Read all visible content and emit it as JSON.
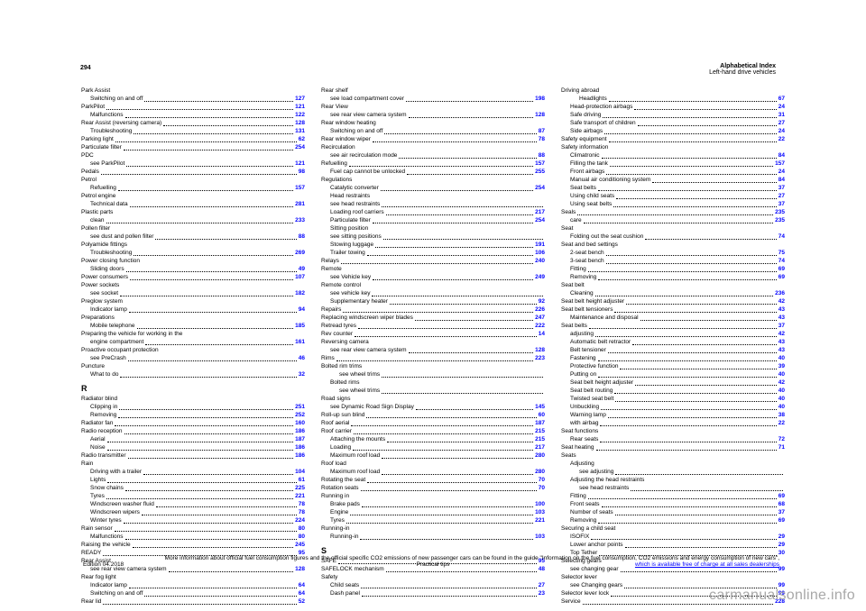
{
  "page_number": "294",
  "header_line1": "Alphabetical Index",
  "header_line2": "Left-hand drive vehicles",
  "col1": [
    {
      "txt": "Park Assist",
      "pg": ""
    },
    {
      "txt": "Switching on and off",
      "pg": "127",
      "indent": 1
    },
    {
      "txt": "ParkPilot",
      "pg": "121",
      "indent": 0
    },
    {
      "txt": "Malfunctions",
      "pg": "122",
      "indent": 1
    },
    {
      "txt": "Rear Assist (reversing camera)",
      "pg": "128",
      "indent": 0
    },
    {
      "txt": "Troubleshooting",
      "pg": "131",
      "indent": 1
    },
    {
      "txt": "Parking light",
      "pg": "62",
      "indent": 0
    },
    {
      "txt": "Particulate filter",
      "pg": "254",
      "indent": 0
    },
    {
      "txt": "PDC",
      "pg": "",
      "indent": 0
    },
    {
      "txt": "see ParkPilot",
      "pg": "121",
      "indent": 1
    },
    {
      "txt": "Pedals",
      "pg": "98",
      "indent": 0
    },
    {
      "txt": "Petrol",
      "pg": "",
      "indent": 0
    },
    {
      "txt": "Refuelling",
      "pg": "157",
      "indent": 1
    },
    {
      "txt": "Petrol engine",
      "pg": "",
      "indent": 0
    },
    {
      "txt": "Technical data",
      "pg": "281",
      "indent": 1
    },
    {
      "txt": "Plastic parts",
      "pg": "",
      "indent": 0
    },
    {
      "txt": "clean",
      "pg": "233",
      "indent": 1
    },
    {
      "txt": "Pollen filter",
      "pg": "",
      "indent": 0
    },
    {
      "txt": "see dust and pollen filter",
      "pg": "88",
      "indent": 1
    },
    {
      "txt": "Polyamide fittings",
      "pg": "",
      "indent": 0
    },
    {
      "txt": "Troubleshooting",
      "pg": "269",
      "indent": 1
    },
    {
      "txt": "Power closing function",
      "pg": "",
      "indent": 0
    },
    {
      "txt": "Sliding doors",
      "pg": "49",
      "indent": 1
    },
    {
      "txt": "Power consumers",
      "pg": "107",
      "indent": 0
    },
    {
      "txt": "Power sockets",
      "pg": "",
      "indent": 0
    },
    {
      "txt": "see socket",
      "pg": "182",
      "indent": 1
    },
    {
      "txt": "Preglow system",
      "pg": "",
      "indent": 0
    },
    {
      "txt": "Indicator lamp",
      "pg": "94",
      "indent": 1
    },
    {
      "txt": "Preparations",
      "pg": "",
      "indent": 0
    },
    {
      "txt": "Mobile telephone",
      "pg": "185",
      "indent": 1
    },
    {
      "txt": "Preparing the vehicle for working in the",
      "pg": "",
      "indent": 0
    },
    {
      "txt": "engine compartment",
      "pg": "161",
      "indent": 1
    },
    {
      "txt": "Proactive occupant protection",
      "pg": "",
      "indent": 0
    },
    {
      "txt": "see PreCrash",
      "pg": "46",
      "indent": 1
    },
    {
      "txt": "Puncture",
      "pg": "",
      "indent": 0
    },
    {
      "txt": "What to do",
      "pg": "32",
      "indent": 1
    }
  ],
  "col1_R": [
    {
      "letter": "R"
    },
    {
      "txt": "Radiator blind",
      "pg": "",
      "indent": 0
    },
    {
      "txt": "Clipping in",
      "pg": "251",
      "indent": 1
    },
    {
      "txt": "Removing",
      "pg": "252",
      "indent": 1
    },
    {
      "txt": "Radiator fan",
      "pg": "160",
      "indent": 0
    },
    {
      "txt": "Radio reception",
      "pg": "186",
      "indent": 0
    },
    {
      "txt": "Aerial",
      "pg": "187",
      "indent": 1
    },
    {
      "txt": "Noise",
      "pg": "186",
      "indent": 1
    },
    {
      "txt": "Radio transmitter",
      "pg": "186",
      "indent": 0
    },
    {
      "txt": "Rain",
      "pg": "",
      "indent": 0
    },
    {
      "txt": "Driving with a trailer",
      "pg": "104",
      "indent": 1
    },
    {
      "txt": "Lights",
      "pg": "61",
      "indent": 1
    },
    {
      "txt": "Snow chains",
      "pg": "225",
      "indent": 1
    },
    {
      "txt": "Tyres",
      "pg": "221",
      "indent": 1
    },
    {
      "txt": "Windscreen washer fluid",
      "pg": "78",
      "indent": 1
    },
    {
      "txt": "Windscreen wipers",
      "pg": "78",
      "indent": 1
    },
    {
      "txt": "Winter tyres",
      "pg": "224",
      "indent": 1
    },
    {
      "txt": "Rain sensor",
      "pg": "80",
      "indent": 0
    },
    {
      "txt": "Malfunctions",
      "pg": "80",
      "indent": 1
    },
    {
      "txt": "Raising the vehicle",
      "pg": "245",
      "indent": 0
    },
    {
      "txt": "READY",
      "pg": "95",
      "indent": 0
    },
    {
      "txt": "Rear Assist",
      "pg": "",
      "indent": 0
    },
    {
      "txt": "see rear view camera system",
      "pg": "128",
      "indent": 1
    },
    {
      "txt": "Rear fog light",
      "pg": "",
      "indent": 0
    },
    {
      "txt": "Indicator lamp",
      "pg": "64",
      "indent": 1
    },
    {
      "txt": "Switching on and off",
      "pg": "64",
      "indent": 1
    },
    {
      "txt": "Rear lid",
      "pg": "52",
      "indent": 0
    }
  ],
  "col2": [
    {
      "txt": "Rear shelf",
      "pg": "",
      "indent": 0
    },
    {
      "txt": "see load compartment cover",
      "pg": "198",
      "indent": 1
    },
    {
      "txt": "Rear View",
      "pg": "",
      "indent": 0
    },
    {
      "txt": "see rear view camera system",
      "pg": "128",
      "indent": 1
    },
    {
      "txt": "Rear window heating",
      "pg": "",
      "indent": 0
    },
    {
      "txt": "Switching on and off",
      "pg": "87",
      "indent": 1
    },
    {
      "txt": "Rear window wiper",
      "pg": "78",
      "indent": 0
    },
    {
      "txt": "Recirculation",
      "pg": "",
      "indent": 0
    },
    {
      "txt": "see air recirculation mode",
      "pg": "88",
      "indent": 1
    },
    {
      "txt": "Refuelling",
      "pg": "157",
      "indent": 0
    },
    {
      "txt": "Fuel cap cannot be unlocked",
      "pg": "255",
      "indent": 1
    },
    {
      "txt": "Regulations",
      "pg": "",
      "indent": 0
    },
    {
      "txt": "Catalytic converter",
      "pg": "254",
      "indent": 1
    },
    {
      "txt": "Head restraints",
      "pg": "",
      "indent": 1,
      "continue": true
    },
    {
      "txt": "see head restraints",
      "pg": "",
      "indent": 1,
      "nolinkpg": true
    },
    {
      "txt": "Loading roof carriers",
      "pg": "217",
      "indent": 1
    },
    {
      "txt": "Particulate filter",
      "pg": "254",
      "indent": 1
    },
    {
      "txt": "Sitting position",
      "pg": "",
      "indent": 1,
      "continue": true
    },
    {
      "txt": "see sitting positions",
      "pg": "",
      "indent": 1,
      "nolinkpg": true
    },
    {
      "txt": "Stowing luggage",
      "pg": "191",
      "indent": 1
    },
    {
      "txt": "Trailer towing",
      "pg": "106",
      "indent": 1
    },
    {
      "txt": "Relays",
      "pg": "240",
      "indent": 0
    },
    {
      "txt": "Remote",
      "pg": "",
      "indent": 0
    },
    {
      "txt": "see Vehicle key",
      "pg": "249",
      "indent": 1
    },
    {
      "txt": "Remote control",
      "pg": "",
      "indent": 0
    },
    {
      "txt": "see vehicle key",
      "pg": "",
      "indent": 1,
      "nolinkpg": true
    },
    {
      "txt": "Supplementary heater",
      "pg": "92",
      "indent": 1
    },
    {
      "txt": "Repairs",
      "pg": "226",
      "indent": 0
    },
    {
      "txt": "Replacing windscreen wiper blades",
      "pg": "247",
      "indent": 0
    },
    {
      "txt": "Retread tyres",
      "pg": "222",
      "indent": 0
    },
    {
      "txt": "Rev counter",
      "pg": "14",
      "indent": 0
    },
    {
      "txt": "Reversing camera",
      "pg": "",
      "indent": 0
    },
    {
      "txt": "see rear view camera system",
      "pg": "128",
      "indent": 1
    },
    {
      "txt": "Rims",
      "pg": "223",
      "indent": 0
    },
    {
      "txt": "Bolted rim trims",
      "pg": ""
    },
    {
      "txt": "see wheel trims",
      "pg": "",
      "indent": 2,
      "nolinkpg": true
    },
    {
      "txt": "Bolted rims",
      "pg": "",
      "indent": 1
    },
    {
      "txt": "see wheel trims",
      "pg": "",
      "indent": 2,
      "nolinkpg": true
    },
    {
      "txt": "Road signs",
      "pg": "",
      "indent": 0
    },
    {
      "txt": "see Dynamic Road Sign Display",
      "pg": "145",
      "indent": 1
    },
    {
      "txt": "Roll-up sun blind",
      "pg": "60",
      "indent": 0
    },
    {
      "txt": "Roof aerial",
      "pg": "187",
      "indent": 0
    },
    {
      "txt": "Roof carrier",
      "pg": "215",
      "indent": 0
    },
    {
      "txt": "Attaching the mounts",
      "pg": "215",
      "indent": 1
    },
    {
      "txt": "Loading",
      "pg": "217",
      "indent": 1
    },
    {
      "txt": "Maximum roof load",
      "pg": "280",
      "indent": 1
    },
    {
      "txt": "Roof load",
      "pg": "",
      "indent": 0
    },
    {
      "txt": "Maximum roof load",
      "pg": "280",
      "indent": 1
    },
    {
      "txt": "Rotating the seat",
      "pg": "70",
      "indent": 0
    },
    {
      "txt": "Rotation seats",
      "pg": "70",
      "indent": 0
    },
    {
      "txt": "Running in",
      "pg": "",
      "indent": 0
    },
    {
      "txt": "Brake pads",
      "pg": "100",
      "indent": 1
    },
    {
      "txt": "Engine",
      "pg": "103",
      "indent": 1
    },
    {
      "txt": "Tyres",
      "pg": "221",
      "indent": 1
    },
    {
      "txt": "Running-in",
      "pg": "",
      "indent": 0
    },
    {
      "txt": "Running-in",
      "pg": "103",
      "indent": 1
    }
  ],
  "col2_S": [
    {
      "letter": "S"
    },
    {
      "txt": "SAFE",
      "pg": "95",
      "indent": 0
    },
    {
      "txt": "SAFELOCK mechanism",
      "pg": "48",
      "indent": 0
    },
    {
      "txt": "Safety",
      "pg": "",
      "indent": 0
    },
    {
      "txt": "Child seats",
      "pg": "27",
      "indent": 1
    },
    {
      "txt": "Dash panel",
      "pg": "23",
      "indent": 1
    }
  ],
  "col3": [
    {
      "txt": "Driving abroad",
      "pg": "",
      "indent": 0
    },
    {
      "txt": "Headlights",
      "pg": "67",
      "indent": 2
    },
    {
      "txt": "Head-protection airbags",
      "pg": "24",
      "indent": 1
    },
    {
      "txt": "Safe driving",
      "pg": "31",
      "indent": 1
    },
    {
      "txt": "Safe transport of children",
      "pg": "27",
      "indent": 1
    },
    {
      "txt": "Side airbags",
      "pg": "24",
      "indent": 1
    },
    {
      "txt": "Safety equipment",
      "pg": "22",
      "indent": 0
    },
    {
      "txt": "Safety information",
      "pg": "",
      "indent": 0
    },
    {
      "txt": "Climatronic",
      "pg": "84",
      "indent": 1
    },
    {
      "txt": "Filling the tank",
      "pg": "157",
      "indent": 1
    },
    {
      "txt": "Front airbags",
      "pg": "24",
      "indent": 1
    },
    {
      "txt": "Manual air conditioning system",
      "pg": "84",
      "indent": 1
    },
    {
      "txt": "Seat belts",
      "pg": "37",
      "indent": 1
    },
    {
      "txt": "Using child seats",
      "pg": "27",
      "indent": 1
    },
    {
      "txt": "Using seat belts",
      "pg": "37",
      "indent": 1
    },
    {
      "txt": "Seals",
      "pg": "235",
      "indent": 0
    },
    {
      "txt": "care",
      "pg": "235",
      "indent": 1
    },
    {
      "txt": "Seat",
      "pg": "",
      "indent": 0
    },
    {
      "txt": "Folding out the seat cushion",
      "pg": "74",
      "indent": 1
    },
    {
      "txt": "Seat and bed settings",
      "pg": "",
      "indent": 0
    },
    {
      "txt": "2-seat bench",
      "pg": "75",
      "indent": 1
    },
    {
      "txt": "3-seat bench",
      "pg": "74",
      "indent": 1
    },
    {
      "txt": "Fitting",
      "pg": "69",
      "indent": 1
    },
    {
      "txt": "Removing",
      "pg": "69",
      "indent": 1
    },
    {
      "txt": "Seat belt",
      "pg": "",
      "indent": 0
    },
    {
      "txt": "Cleaning",
      "pg": "236",
      "indent": 1
    },
    {
      "txt": "Seat belt height adjuster",
      "pg": "42",
      "indent": 0
    },
    {
      "txt": "Seat belt tensioners",
      "pg": "43",
      "indent": 0
    },
    {
      "txt": "Maintenance and disposal",
      "pg": "43",
      "indent": 1
    },
    {
      "txt": "Seat belts",
      "pg": "37",
      "indent": 0
    },
    {
      "txt": "adjusting",
      "pg": "42",
      "indent": 1
    },
    {
      "txt": "Automatic belt retractor",
      "pg": "43",
      "indent": 1
    },
    {
      "txt": "Belt tensioner",
      "pg": "43",
      "indent": 1
    },
    {
      "txt": "Fastening",
      "pg": "40",
      "indent": 1
    },
    {
      "txt": "Protective function",
      "pg": "39",
      "indent": 1
    },
    {
      "txt": "Putting on",
      "pg": "40",
      "indent": 1
    },
    {
      "txt": "Seat belt height adjuster",
      "pg": "42",
      "indent": 1
    },
    {
      "txt": "Seat belt routing",
      "pg": "40",
      "indent": 1
    },
    {
      "txt": "Twisted seat belt",
      "pg": "40",
      "indent": 1
    },
    {
      "txt": "Unbuckling",
      "pg": "40",
      "indent": 1
    },
    {
      "txt": "Warning lamp",
      "pg": "38",
      "indent": 1
    },
    {
      "txt": "with airbag",
      "pg": "22",
      "indent": 1
    },
    {
      "txt": "Seat functions",
      "pg": "",
      "indent": 0
    },
    {
      "txt": "Rear seats",
      "pg": "72",
      "indent": 1
    },
    {
      "txt": "Seat heating",
      "pg": "71",
      "indent": 0
    },
    {
      "txt": "Seats",
      "pg": "",
      "indent": 0
    },
    {
      "txt": "Adjusting",
      "pg": "",
      "indent": 1
    },
    {
      "txt": "see adjusting",
      "pg": "",
      "indent": 2,
      "nolinkpg": true
    },
    {
      "txt": "Adjusting the head restraints",
      "pg": "",
      "indent": 1
    },
    {
      "txt": "see head restraints",
      "pg": "",
      "indent": 2,
      "nolinkpg": true
    },
    {
      "txt": "Fitting",
      "pg": "69",
      "indent": 1
    },
    {
      "txt": "Front seats",
      "pg": "68",
      "indent": 1
    },
    {
      "txt": "Number of seats",
      "pg": "37",
      "indent": 1
    },
    {
      "txt": "Removing",
      "pg": "69",
      "indent": 1
    },
    {
      "txt": "Securing a child seat",
      "pg": "",
      "indent": 0
    },
    {
      "txt": "ISOFIX",
      "pg": "29",
      "indent": 1
    },
    {
      "txt": "Lower anchor points",
      "pg": "29",
      "indent": 1
    },
    {
      "txt": "Top Tether",
      "pg": "30",
      "indent": 1
    },
    {
      "txt": "Selecting gears",
      "pg": "",
      "indent": 0
    },
    {
      "txt": "see changing gear",
      "pg": "99",
      "indent": 1
    },
    {
      "txt": "Selector lever",
      "pg": "",
      "indent": 0
    },
    {
      "txt": "see Changing gears",
      "pg": "99",
      "indent": 1
    },
    {
      "txt": "Selector lever lock",
      "pg": "99",
      "indent": 0
    },
    {
      "txt": "Service",
      "pg": "228",
      "indent": 0
    }
  ],
  "footer_left": "Edition 04.2018",
  "footer_center": "Practical tips",
  "footer_right_text": "More information about official fuel consumption figures and the official\nspecific CO2 emissions of new passenger cars can be found in the\nguide \"Information on the fuel consumption, CO2\nemissions and energy consumption of new cars\",",
  "footer_right_link": "which is available free of charge at all sales dealerships",
  "watermark": "carmanualsonline.info"
}
